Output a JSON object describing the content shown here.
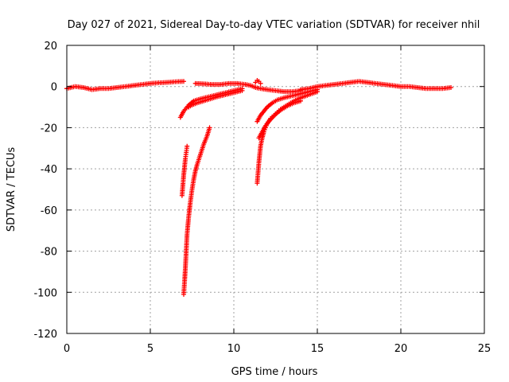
{
  "chart_data": {
    "type": "scatter",
    "title": "Day 027 of 2021, Sidereal Day-to-day VTEC variation (SDTVAR) for receiver nhil",
    "xlabel": "GPS time / hours",
    "ylabel": "SDTVAR / TECUs",
    "xlim": [
      0,
      25
    ],
    "ylim": [
      -120,
      20
    ],
    "x_ticks": [
      0,
      5,
      10,
      15,
      20,
      25
    ],
    "y_ticks": [
      20,
      0,
      -20,
      -40,
      -60,
      -80,
      -100,
      -120
    ],
    "grid": true,
    "marker": "+",
    "color": "#ff0000",
    "series": [
      {
        "x": [
          0.0,
          0.5,
          1.0,
          1.5,
          2.0,
          2.5,
          3.0,
          3.5,
          4.0,
          4.5,
          5.0,
          5.5,
          6.0,
          6.5,
          7.0
        ],
        "y": [
          -1.0,
          0.0,
          -0.5,
          -1.5,
          -1.0,
          -1.0,
          -0.5,
          0.0,
          0.5,
          1.0,
          1.5,
          1.8,
          2.0,
          2.3,
          2.5
        ]
      },
      {
        "x": [
          7.7,
          8.2,
          8.7,
          9.2,
          9.7,
          10.2,
          10.7,
          11.0,
          11.3,
          11.6,
          12.0,
          12.5,
          13.0,
          13.5,
          14.0
        ],
        "y": [
          1.5,
          1.3,
          1.0,
          1.0,
          1.5,
          1.5,
          1.0,
          0.5,
          -0.5,
          -1.0,
          -1.5,
          -2.0,
          -2.5,
          -2.5,
          -2.0
        ]
      },
      {
        "x": [
          14.0,
          14.5,
          15.0,
          15.5,
          16.0,
          16.5,
          17.0,
          17.5,
          18.0,
          18.5,
          19.0,
          19.5,
          20.0,
          20.5,
          21.0,
          21.5,
          22.0,
          22.5,
          23.0
        ],
        "y": [
          -1.5,
          -1.0,
          0.0,
          0.5,
          1.0,
          1.5,
          2.0,
          2.5,
          2.0,
          1.5,
          1.0,
          0.5,
          0.0,
          0.0,
          -0.5,
          -1.0,
          -1.0,
          -1.0,
          -0.5
        ]
      },
      {
        "x": [
          6.8,
          7.0,
          7.3,
          7.6,
          8.0,
          8.5,
          9.0,
          9.5,
          10.0,
          10.5
        ],
        "y": [
          -15.0,
          -12.0,
          -9.0,
          -7.0,
          -6.0,
          -5.0,
          -4.0,
          -3.0,
          -2.0,
          -1.0
        ]
      },
      {
        "x": [
          7.3,
          7.5,
          7.8,
          8.2,
          8.6,
          9.0,
          9.5,
          10.0,
          10.5
        ],
        "y": [
          -10.0,
          -9.0,
          -8.0,
          -7.0,
          -6.0,
          -5.0,
          -4.0,
          -3.0,
          -2.0
        ]
      },
      {
        "x": [
          6.9,
          6.95,
          7.0,
          7.05,
          7.1,
          7.15,
          7.2
        ],
        "y": [
          -53.0,
          -48.0,
          -43.0,
          -39.0,
          -35.0,
          -32.0,
          -29.0
        ]
      },
      {
        "x": [
          7.0,
          7.05,
          7.1,
          7.15,
          7.2,
          7.3,
          7.4,
          7.5,
          7.6,
          7.7,
          7.8,
          8.0,
          8.2,
          8.4,
          8.55
        ],
        "y": [
          -101.0,
          -95.0,
          -88.0,
          -80.0,
          -72.0,
          -63.0,
          -56.0,
          -50.0,
          -45.0,
          -41.0,
          -38.0,
          -33.0,
          -28.0,
          -24.0,
          -20.0
        ]
      },
      {
        "x": [
          11.4,
          11.6,
          11.8,
          12.0,
          12.3,
          12.6,
          13.0,
          13.5,
          14.0,
          14.5,
          15.0
        ],
        "y": [
          -17.0,
          -14.0,
          -12.0,
          -10.0,
          -8.0,
          -6.5,
          -5.5,
          -4.5,
          -3.5,
          -2.5,
          -1.5
        ]
      },
      {
        "x": [
          11.4,
          11.45,
          11.5,
          11.55,
          11.6,
          11.7,
          11.8,
          11.9,
          12.0,
          12.2,
          12.4,
          12.6,
          12.8,
          13.0,
          13.3,
          13.6,
          14.0,
          14.5,
          15.0
        ],
        "y": [
          -47.0,
          -42.0,
          -37.0,
          -33.0,
          -29.0,
          -25.0,
          -22.0,
          -20.0,
          -18.0,
          -15.5,
          -14.0,
          -12.5,
          -11.0,
          -10.0,
          -8.5,
          -7.0,
          -5.5,
          -4.0,
          -2.5
        ]
      },
      {
        "x": [
          11.5,
          11.7,
          11.9,
          12.2,
          12.5,
          12.8,
          13.2,
          13.6,
          14.0
        ],
        "y": [
          -25.0,
          -22.0,
          -19.0,
          -16.0,
          -13.5,
          -11.5,
          -9.5,
          -8.0,
          -7.0
        ]
      },
      {
        "x": [
          11.3,
          11.4,
          11.5,
          11.6
        ],
        "y": [
          2.0,
          3.0,
          2.5,
          1.5
        ]
      }
    ]
  }
}
